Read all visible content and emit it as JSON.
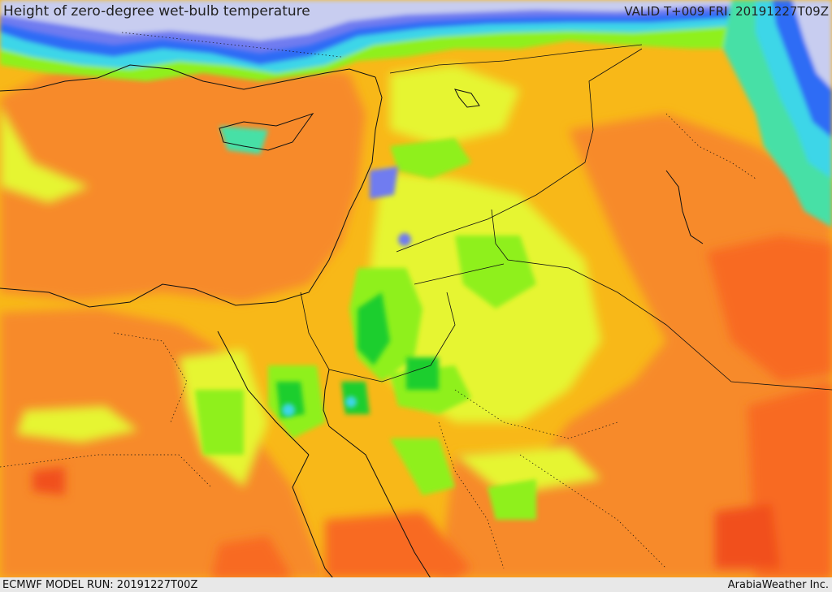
{
  "header": {
    "title": "Height of zero-degree wet-bulb temperature",
    "valid": "VALID T+009 FRI. 20191227T09Z"
  },
  "footer": {
    "model_run": "ECMWF MODEL RUN: 20191227T00Z",
    "credit": "ArabiaWeather Inc."
  },
  "palette": {
    "lowest": "#c8cdf0",
    "very_low": "#6f7bf0",
    "low_blue": "#2f6cf5",
    "cyan": "#3cd6e8",
    "teal": "#46e0a6",
    "green": "#1fce2d",
    "lime": "#8ff01e",
    "yellow": "#e6f532",
    "gold": "#f8c012",
    "orange": "#f78a2a",
    "dark_orange": "#f86a20",
    "red": "#f14f1c"
  }
}
